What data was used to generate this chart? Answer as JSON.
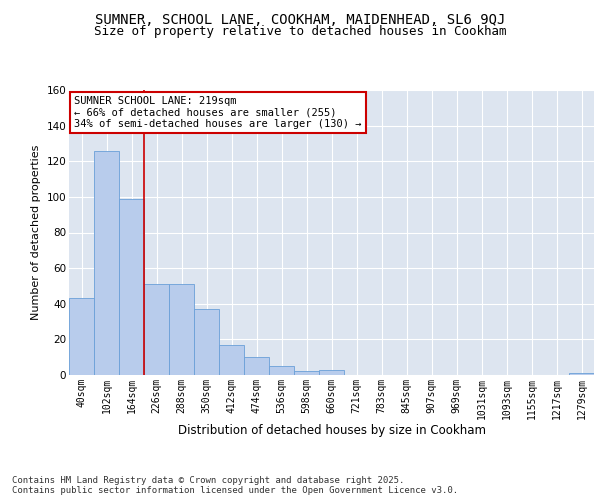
{
  "title_line1": "SUMNER, SCHOOL LANE, COOKHAM, MAIDENHEAD, SL6 9QJ",
  "title_line2": "Size of property relative to detached houses in Cookham",
  "xlabel": "Distribution of detached houses by size in Cookham",
  "ylabel": "Number of detached properties",
  "categories": [
    "40sqm",
    "102sqm",
    "164sqm",
    "226sqm",
    "288sqm",
    "350sqm",
    "412sqm",
    "474sqm",
    "536sqm",
    "598sqm",
    "660sqm",
    "721sqm",
    "783sqm",
    "845sqm",
    "907sqm",
    "969sqm",
    "1031sqm",
    "1093sqm",
    "1155sqm",
    "1217sqm",
    "1279sqm"
  ],
  "values": [
    43,
    126,
    99,
    51,
    51,
    37,
    17,
    10,
    5,
    2,
    3,
    0,
    0,
    0,
    0,
    0,
    0,
    0,
    0,
    0,
    1
  ],
  "bar_color": "#b8ccec",
  "bar_edge_color": "#6a9fd8",
  "vline_x": 2.5,
  "vline_color": "#cc0000",
  "annotation_text": "SUMNER SCHOOL LANE: 219sqm\n← 66% of detached houses are smaller (255)\n34% of semi-detached houses are larger (130) →",
  "annotation_box_facecolor": "#ffffff",
  "annotation_box_edgecolor": "#cc0000",
  "ylim": [
    0,
    160
  ],
  "yticks": [
    0,
    20,
    40,
    60,
    80,
    100,
    120,
    140,
    160
  ],
  "background_color": "#dde5f0",
  "grid_color": "#ffffff",
  "footer": "Contains HM Land Registry data © Crown copyright and database right 2025.\nContains public sector information licensed under the Open Government Licence v3.0.",
  "title_fontsize": 10,
  "subtitle_fontsize": 9,
  "axis_label_fontsize": 8,
  "tick_fontsize": 7,
  "annotation_fontsize": 7.5,
  "footer_fontsize": 6.5
}
